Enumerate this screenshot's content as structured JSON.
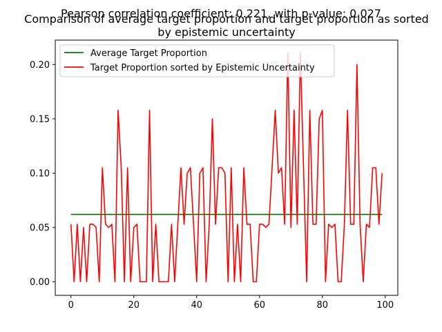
{
  "figure": {
    "suptitle": "Pearson correlation coefficient: 0.221, with p-value: 0.027"
  },
  "chart_data": {
    "type": "line",
    "title_line1": "Comparison of average target proportion and target proportion as sorted",
    "title_line2": "by epistemic uncertainty",
    "xlabel": "",
    "ylabel": "",
    "xlim": [
      -5,
      104
    ],
    "ylim": [
      -0.0125,
      0.2225
    ],
    "xticks": [
      0,
      20,
      40,
      60,
      80,
      100
    ],
    "xtick_labels": [
      "0",
      "20",
      "40",
      "60",
      "80",
      "100"
    ],
    "yticks": [
      0.0,
      0.05,
      0.1,
      0.15,
      0.2
    ],
    "ytick_labels": [
      "0.00",
      "0.05",
      "0.10",
      "0.15",
      "0.20"
    ],
    "grid": false,
    "legend_position": "upper-left",
    "series": [
      {
        "name": "Average Target Proportion",
        "color": "#008000",
        "x": [
          0,
          99
        ],
        "y": [
          0.062,
          0.062
        ]
      },
      {
        "name": "Target Proportion sorted by Epistemic Uncertainty",
        "color": "#ff0000",
        "x": [
          0,
          1,
          2,
          3,
          4,
          5,
          6,
          7,
          8,
          9,
          10,
          11,
          12,
          13,
          14,
          15,
          16,
          17,
          18,
          19,
          20,
          21,
          22,
          23,
          24,
          25,
          26,
          27,
          28,
          29,
          30,
          31,
          32,
          33,
          34,
          35,
          36,
          37,
          38,
          39,
          40,
          41,
          42,
          43,
          44,
          45,
          46,
          47,
          48,
          49,
          50,
          51,
          52,
          53,
          54,
          55,
          56,
          57,
          58,
          59,
          60,
          61,
          62,
          63,
          64,
          65,
          66,
          67,
          68,
          69,
          70,
          71,
          72,
          73,
          74,
          75,
          76,
          77,
          78,
          79,
          80,
          81,
          82,
          83,
          84,
          85,
          86,
          87,
          88,
          89,
          90,
          91,
          92,
          93,
          94,
          95,
          96,
          97,
          98,
          99
        ],
        "y": [
          0.053,
          0.0,
          0.053,
          0.0,
          0.05,
          0.0,
          0.053,
          0.053,
          0.05,
          0.0,
          0.105,
          0.053,
          0.05,
          0.053,
          0.0,
          0.158,
          0.105,
          0.0,
          0.105,
          0.0,
          0.05,
          0.053,
          0.0,
          0.0,
          0.0,
          0.158,
          0.0,
          0.053,
          0.0,
          0.0,
          0.0,
          0.0,
          0.053,
          0.0,
          0.053,
          0.105,
          0.053,
          0.1,
          0.105,
          0.053,
          0.0,
          0.1,
          0.105,
          0.0,
          0.053,
          0.15,
          0.053,
          0.105,
          0.105,
          0.1,
          0.0,
          0.105,
          0.0,
          0.053,
          0.0,
          0.105,
          0.053,
          0.053,
          0.0,
          0.0,
          0.053,
          0.053,
          0.05,
          0.053,
          0.105,
          0.158,
          0.1,
          0.105,
          0.053,
          0.211,
          0.05,
          0.158,
          0.053,
          0.211,
          0.105,
          0.0,
          0.158,
          0.053,
          0.053,
          0.15,
          0.158,
          0.0,
          0.053,
          0.05,
          0.053,
          0.0,
          0.0,
          0.053,
          0.158,
          0.053,
          0.053,
          0.2,
          0.053,
          0.0,
          0.053,
          0.05,
          0.105,
          0.105,
          0.053,
          0.1
        ]
      }
    ]
  }
}
